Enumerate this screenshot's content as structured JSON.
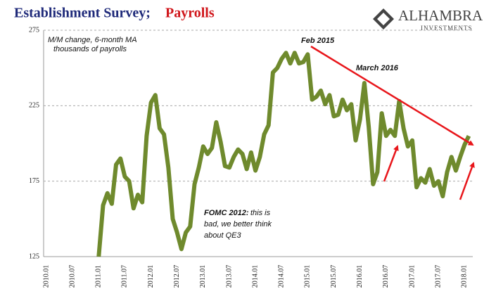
{
  "header": {
    "title": "Establishment Survey;",
    "title_highlight": "Payrolls",
    "logo": "ALHAMBRA",
    "logo_sub": "INVESTMENTS"
  },
  "chart_data": {
    "type": "line",
    "subtitle": [
      "M/M change, 6-month MA",
      "thousands of payrolls"
    ],
    "annotations": [
      "Feb 2015",
      "March 2016"
    ],
    "fomc_note": {
      "bold": "FOMC 2012:",
      "text": [
        "this is",
        "bad, we better think",
        "about QE3"
      ]
    },
    "categories": [
      "2010.01",
      null,
      null,
      null,
      null,
      null,
      "2010.07",
      null,
      null,
      null,
      null,
      null,
      "2011.01",
      null,
      null,
      null,
      null,
      null,
      "2011.07",
      null,
      null,
      null,
      null,
      null,
      "2012.01",
      null,
      null,
      null,
      null,
      null,
      "2012.07",
      null,
      null,
      null,
      null,
      null,
      "2013.01",
      null,
      null,
      null,
      null,
      null,
      "2013.07",
      null,
      null,
      null,
      null,
      null,
      "2014.01",
      null,
      null,
      null,
      null,
      null,
      "2014.07",
      null,
      null,
      null,
      null,
      null,
      "2015.01",
      null,
      null,
      null,
      null,
      null,
      "2015.07",
      null,
      null,
      null,
      null,
      null,
      "2016.01",
      null,
      null,
      null,
      null,
      null,
      "2016.07",
      null,
      null,
      null,
      null,
      null,
      "2017.01",
      null,
      null,
      null,
      null,
      null,
      "2017.07",
      null,
      null,
      null,
      null,
      null,
      "2018.01",
      null
    ],
    "series": [
      {
        "name": "Payrolls",
        "color": "#6f8a2d",
        "values": [
          null,
          null,
          null,
          null,
          null,
          null,
          null,
          null,
          null,
          null,
          null,
          null,
          125,
          159,
          167,
          160,
          186,
          190,
          178,
          175,
          157,
          166,
          161,
          205,
          227,
          232,
          210,
          206,
          184,
          150,
          141,
          130,
          141,
          145,
          173,
          184,
          198,
          193,
          197,
          214,
          201,
          185,
          184,
          191,
          196,
          193,
          183,
          194,
          182,
          191,
          206,
          212,
          247,
          250,
          256,
          260,
          253,
          260,
          253,
          254,
          259,
          229,
          231,
          235,
          226,
          232,
          218,
          219,
          229,
          222,
          226,
          202,
          216,
          240,
          211,
          173,
          181,
          220,
          205,
          209,
          205,
          228,
          210,
          198,
          202,
          171,
          177,
          174,
          183,
          172,
          175,
          165,
          181,
          191,
          182,
          191,
          199,
          205
        ]
      }
    ],
    "ylim": [
      125,
      275
    ],
    "yticks": [
      125,
      175,
      225,
      275
    ],
    "grid": true
  }
}
